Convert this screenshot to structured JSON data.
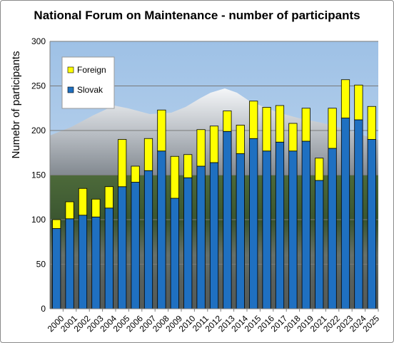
{
  "chart_data": {
    "type": "bar",
    "stacked": true,
    "title": "National Forum on Maintenance - number of participants",
    "xlabel": "",
    "ylabel": "Numebr of participants",
    "ylim": [
      0,
      300
    ],
    "yticks": [
      0,
      50,
      100,
      150,
      200,
      250,
      300
    ],
    "grid": true,
    "legend_placement": "top-left",
    "background": "mountain photo",
    "categories": [
      "2000",
      "2001",
      "2002",
      "2003",
      "2004",
      "2005",
      "2006",
      "2007",
      "2008",
      "2009",
      "2010",
      "2011",
      "2012",
      "2013",
      "2014",
      "2015",
      "2016",
      "2017",
      "2018",
      "2019",
      "2021",
      "2022",
      "2023",
      "2024",
      "2025"
    ],
    "series": [
      {
        "name": "Slovak",
        "color": "#1f70c1",
        "values": [
          90,
          101,
          105,
          103,
          113,
          137,
          142,
          155,
          177,
          124,
          147,
          160,
          164,
          199,
          174,
          191,
          177,
          187,
          177,
          188,
          144,
          180,
          214,
          212,
          190
        ]
      },
      {
        "name": "Foreign",
        "color": "#ffff00",
        "values": [
          10,
          19,
          30,
          20,
          24,
          53,
          18,
          36,
          46,
          47,
          26,
          41,
          41,
          23,
          32,
          42,
          49,
          41,
          31,
          37,
          25,
          45,
          43,
          39,
          37
        ]
      }
    ],
    "legend_order": [
      "Foreign",
      "Slovak"
    ]
  }
}
